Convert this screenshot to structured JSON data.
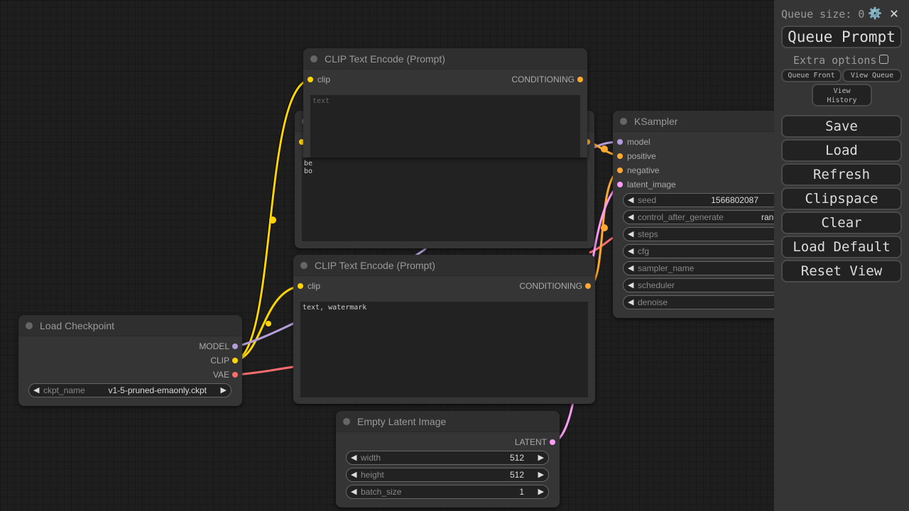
{
  "colors": {
    "clip": "#ffd500",
    "model": "#b39ddb",
    "vae": "#ff6e6e",
    "conditioning": "#ffa931",
    "latent": "#ff9cf9"
  },
  "nodes": {
    "clip_top": {
      "title": "CLIP Text Encode (Prompt)",
      "input": "clip",
      "output": "CONDITIONING",
      "placeholder": "text"
    },
    "clip_hidden": {
      "text_line1": "be",
      "text_line2": "bo"
    },
    "clip_bottom": {
      "title": "CLIP Text Encode (Prompt)",
      "input": "clip",
      "output": "CONDITIONING",
      "text": "text, watermark"
    },
    "checkpoint": {
      "title": "Load Checkpoint",
      "outputs": [
        "MODEL",
        "CLIP",
        "VAE"
      ],
      "widget": {
        "label": "ckpt_name",
        "value": "v1-5-pruned-emaonly.ckpt"
      }
    },
    "latent": {
      "title": "Empty Latent Image",
      "output": "LATENT",
      "widgets": [
        {
          "label": "width",
          "value": "512"
        },
        {
          "label": "height",
          "value": "512"
        },
        {
          "label": "batch_size",
          "value": "1"
        }
      ]
    },
    "ksampler": {
      "title": "KSampler",
      "inputs": [
        "model",
        "positive",
        "negative",
        "latent_image"
      ],
      "widgets": [
        {
          "label": "seed",
          "value": "1566802087"
        },
        {
          "label": "control_after_generate",
          "value": "randomize"
        },
        {
          "label": "steps",
          "value": ""
        },
        {
          "label": "cfg",
          "value": ""
        },
        {
          "label": "sampler_name",
          "value": ""
        },
        {
          "label": "scheduler",
          "value": ""
        },
        {
          "label": "denoise",
          "value": ""
        }
      ]
    }
  },
  "sidebar": {
    "queue_size": "Queue size: 0",
    "gear_icon": "⚙️",
    "close_icon": "✕",
    "queue_prompt": "Queue Prompt",
    "extra_options": "Extra options",
    "queue_front": "Queue Front",
    "view_queue": "View Queue",
    "view_history_1": "View",
    "view_history_2": "History",
    "buttons": [
      "Save",
      "Load",
      "Refresh",
      "Clipspace",
      "Clear",
      "Load Default",
      "Reset View"
    ]
  }
}
